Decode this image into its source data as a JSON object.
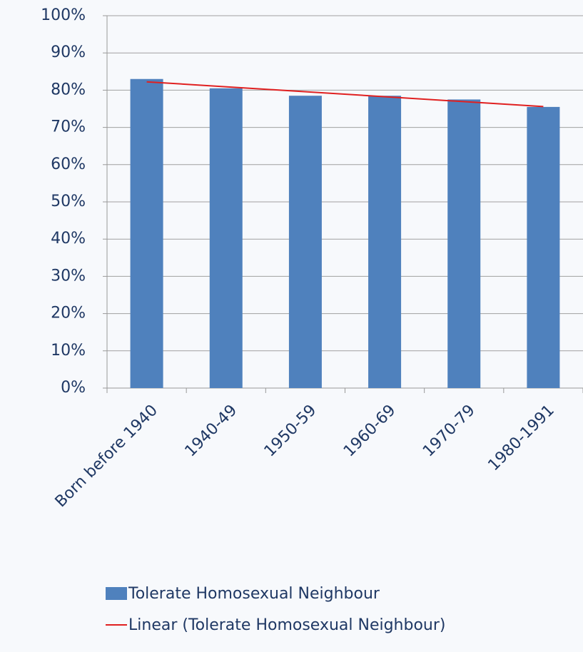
{
  "chart_data": {
    "type": "bar",
    "categories": [
      "Born before 1940",
      "1940-49",
      "1950-59",
      "1960-69",
      "1970-79",
      "1980-1991"
    ],
    "series": [
      {
        "name": "Tolerate Homosexual Neighbour",
        "color": "#4f81bd",
        "values": [
          83,
          80.5,
          78.5,
          78.5,
          77.5,
          75.5
        ]
      }
    ],
    "trendline": {
      "name": "Linear (Tolerate Homosexual Neighbour)",
      "color": "#e02020",
      "kind": "linear"
    },
    "ylim": [
      0,
      100
    ],
    "yticks": [
      {
        "value": 0,
        "label": "0%"
      },
      {
        "value": 10,
        "label": "10%"
      },
      {
        "value": 20,
        "label": "20%"
      },
      {
        "value": 30,
        "label": "30%"
      },
      {
        "value": 40,
        "label": "40%"
      },
      {
        "value": 50,
        "label": "50%"
      },
      {
        "value": 60,
        "label": "60%"
      },
      {
        "value": 70,
        "label": "70%"
      },
      {
        "value": 80,
        "label": "80%"
      },
      {
        "value": 90,
        "label": "90%"
      },
      {
        "value": 100,
        "label": "100%"
      }
    ],
    "grid": true
  }
}
